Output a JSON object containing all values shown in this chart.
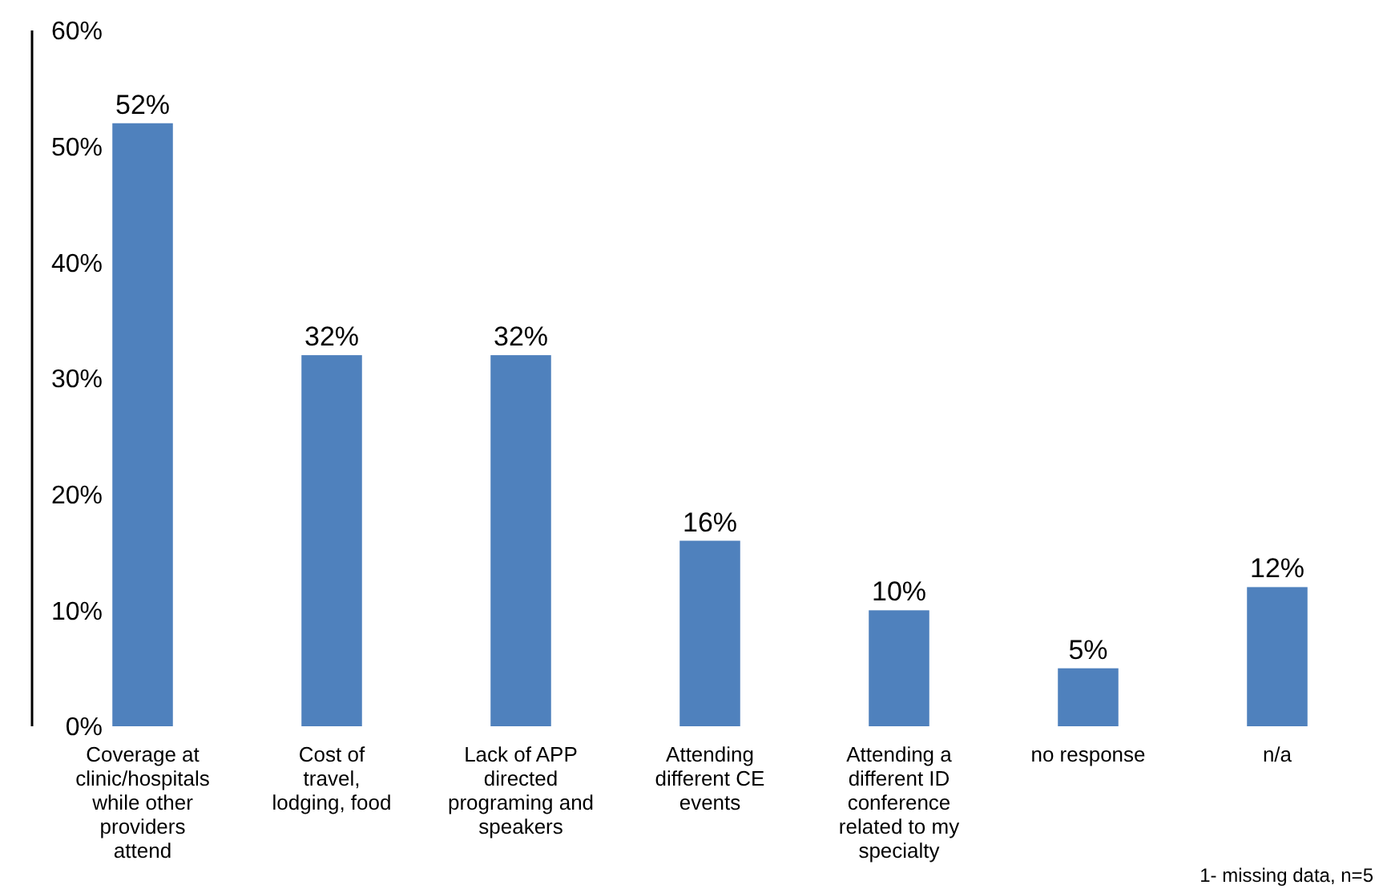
{
  "chart_data": {
    "type": "bar",
    "categories": [
      "Coverage at clinic/hospitals while other providers attend",
      "Cost of travel, lodging, food",
      "Lack of APP directed programing and speakers",
      "Attending different CE events",
      "Attending a different ID conference related to my specialty",
      "no response",
      "n/a"
    ],
    "values": [
      52,
      32,
      32,
      16,
      10,
      5,
      12
    ],
    "color": "#4f81bd",
    "ylim": [
      0,
      60
    ],
    "yticks": [
      {
        "value": 0,
        "label": "0%"
      },
      {
        "value": 10,
        "label": "10%"
      },
      {
        "value": 20,
        "label": "20%"
      },
      {
        "value": 30,
        "label": "30%"
      },
      {
        "value": 40,
        "label": "40%"
      },
      {
        "value": 50,
        "label": "50%"
      },
      {
        "value": 60,
        "label": "60%"
      }
    ],
    "value_labels": [
      "52%",
      "32%",
      "32%",
      "16%",
      "10%",
      "5%",
      "12%"
    ],
    "grid": false,
    "annotations": [
      "1- missing data, n=5"
    ]
  }
}
